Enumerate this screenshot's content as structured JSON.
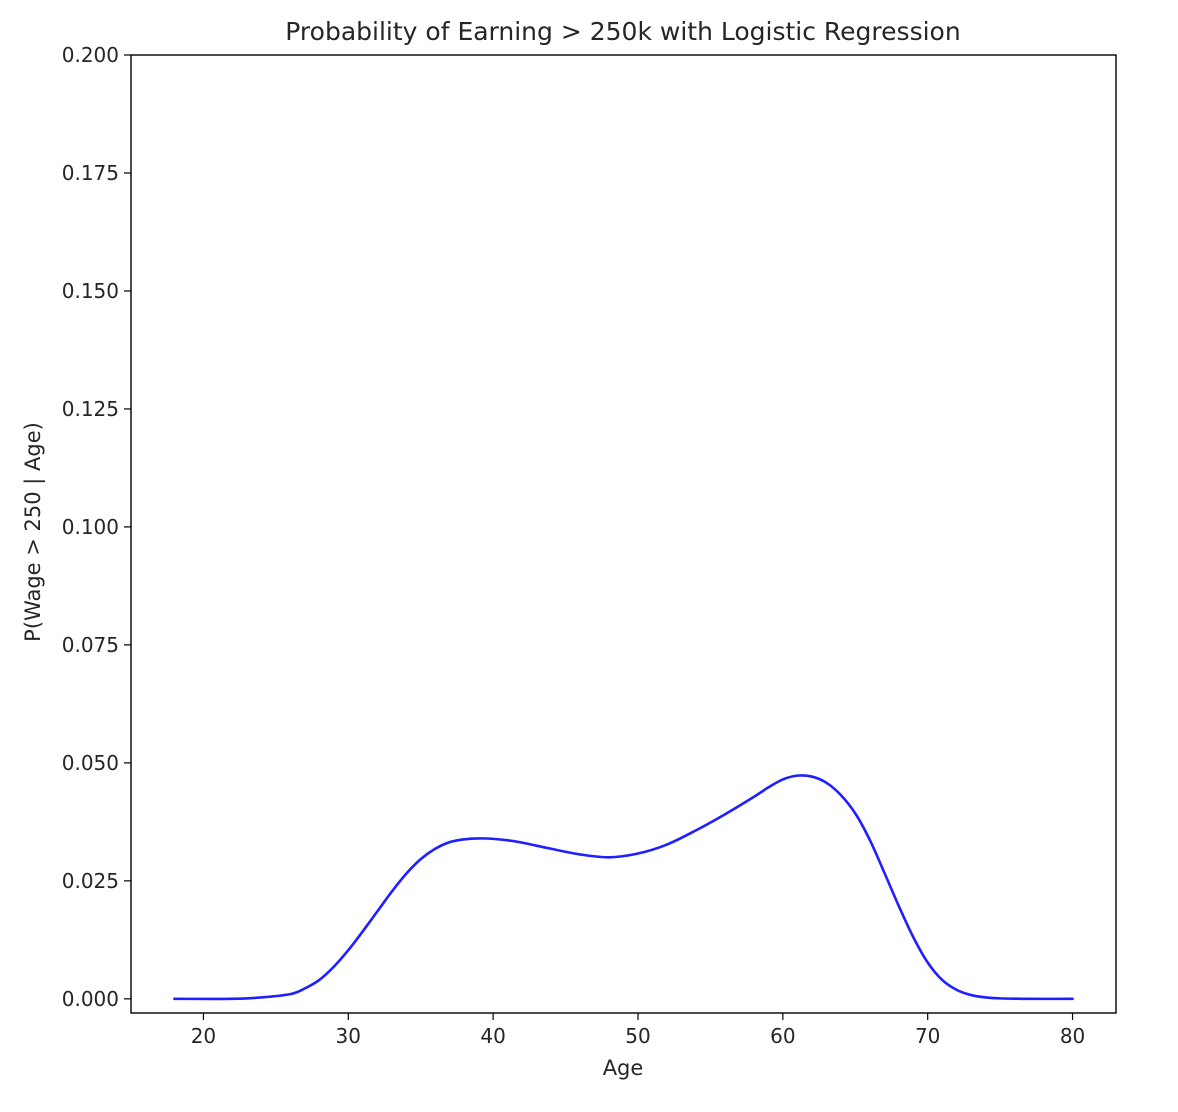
{
  "chart_data": {
    "type": "line",
    "title": "Probability of Earning > 250k with Logistic Regression",
    "xlabel": "Age",
    "ylabel": "P(Wage > 250 | Age)",
    "xlim": [
      15,
      83
    ],
    "ylim": [
      -0.003,
      0.2
    ],
    "xticks": [
      20,
      30,
      40,
      50,
      60,
      70,
      80
    ],
    "xtick_labels": [
      "20",
      "30",
      "40",
      "50",
      "60",
      "70",
      "80"
    ],
    "yticks": [
      0.0,
      0.025,
      0.05,
      0.075,
      0.1,
      0.125,
      0.15,
      0.175,
      0.2
    ],
    "ytick_labels": [
      "0.000",
      "0.025",
      "0.050",
      "0.075",
      "0.100",
      "0.125",
      "0.150",
      "0.175",
      "0.200"
    ],
    "grid": false,
    "series": [
      {
        "color": "#1f1fff",
        "x": [
          18,
          22,
          24,
          26,
          27,
          28,
          29,
          30,
          31,
          32,
          33,
          34,
          35,
          36,
          37,
          38,
          39,
          40,
          41,
          42,
          44,
          46,
          48,
          50,
          52,
          54,
          56,
          58,
          59,
          60,
          61,
          62,
          63,
          64,
          65,
          66,
          67,
          68,
          69,
          70,
          71,
          72,
          73,
          74,
          75,
          77,
          80
        ],
        "y": [
          0.0,
          0.0,
          0.0003,
          0.001,
          0.0022,
          0.004,
          0.0068,
          0.0103,
          0.0143,
          0.0185,
          0.0227,
          0.0265,
          0.0296,
          0.0318,
          0.0332,
          0.0338,
          0.034,
          0.0339,
          0.0336,
          0.0331,
          0.0318,
          0.0306,
          0.03,
          0.0308,
          0.0327,
          0.0357,
          0.0391,
          0.0428,
          0.0448,
          0.0465,
          0.0473,
          0.0471,
          0.0458,
          0.0432,
          0.0393,
          0.0337,
          0.0268,
          0.0197,
          0.0131,
          0.0077,
          0.004,
          0.0019,
          0.0008,
          0.0003,
          0.0001,
          0.0,
          0.0
        ]
      }
    ]
  }
}
